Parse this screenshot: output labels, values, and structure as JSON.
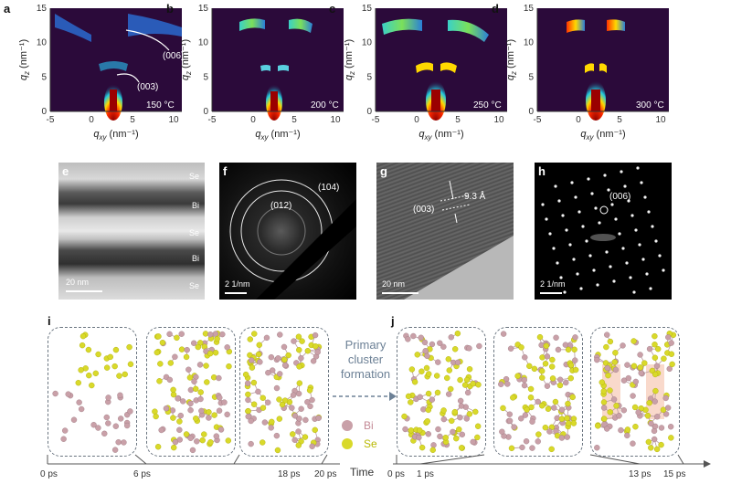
{
  "panels_top": [
    {
      "id": "a",
      "temp": "150 °C",
      "annotations": [
        "(006)",
        "(003)"
      ]
    },
    {
      "id": "b",
      "temp": "200 °C"
    },
    {
      "id": "c",
      "temp": "250 °C"
    },
    {
      "id": "d",
      "temp": "300 °C"
    }
  ],
  "axes": {
    "ylabel": "q",
    "ylabel_sub": "z",
    "ylabel_unit": " (nm⁻¹)",
    "xlabel": "q",
    "xlabel_sub": "xy",
    "xlabel_unit": " (nm⁻¹)",
    "xticks": [
      "-5",
      "0",
      "5",
      "10"
    ],
    "yticks": [
      "0",
      "5",
      "10",
      "15"
    ]
  },
  "panel_e": {
    "id": "e",
    "layers": [
      "Se",
      "Bi",
      "Se",
      "Bi",
      "Se"
    ],
    "scale": "20 nm"
  },
  "panel_f": {
    "id": "f",
    "rings": [
      "(104)",
      "(012)"
    ],
    "scale": "2 1/nm"
  },
  "panel_g": {
    "id": "g",
    "label": "(003)",
    "spacing": "9.3 Å",
    "scale": "20 nm"
  },
  "panel_h": {
    "id": "h",
    "label": "(006)",
    "scale": "2 1/nm"
  },
  "panel_i": {
    "id": "i",
    "times": [
      "0 ps",
      "6 ps",
      "18 ps",
      "20 ps"
    ]
  },
  "panel_j": {
    "id": "j",
    "times": [
      "0 ps",
      "1 ps",
      "13 ps",
      "15 ps"
    ]
  },
  "legend": {
    "bi": "Bi",
    "se": "Se"
  },
  "mid_text": [
    "Primary",
    "cluster",
    "formation"
  ],
  "time_axis": "Time",
  "colors": {
    "bi": "#c9a0a8",
    "se": "#d9d92a",
    "dark_bg": "#2b0a3a",
    "box_border": "#6a7580"
  }
}
